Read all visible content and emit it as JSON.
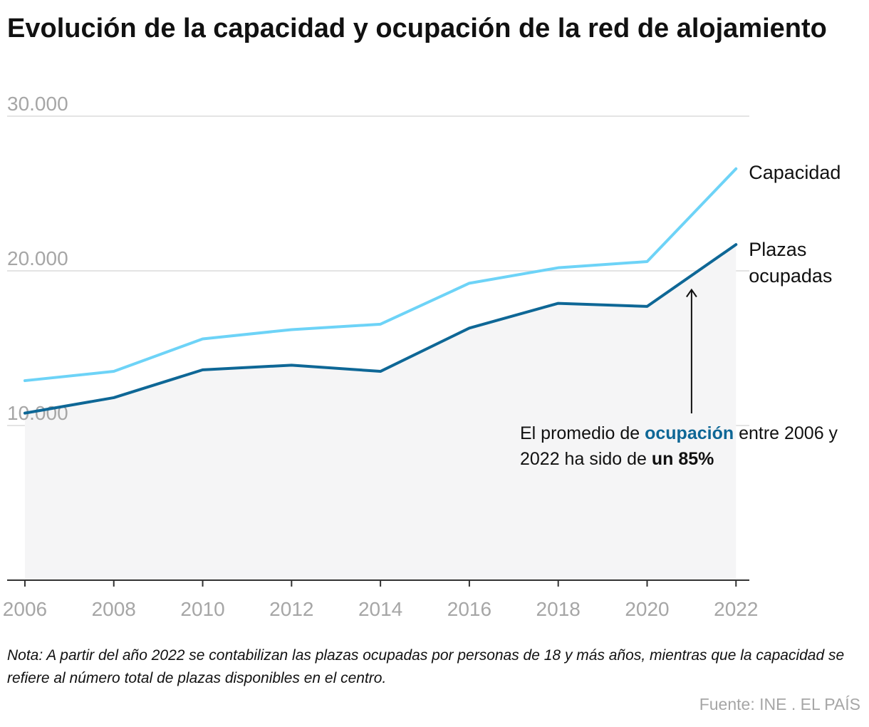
{
  "title": "Evolución de la capacidad y ocupación de la red de alojamiento",
  "chart_data": {
    "type": "line",
    "x": [
      2006,
      2008,
      2010,
      2012,
      2014,
      2016,
      2018,
      2020,
      2022
    ],
    "x_tick_labels": [
      "2006",
      "2008",
      "2010",
      "2012",
      "2014",
      "2016",
      "2018",
      "2020",
      "2022"
    ],
    "xlim": [
      2005.6,
      2022.3
    ],
    "ylim": [
      0,
      30000
    ],
    "y_ticks": [
      10000,
      20000,
      30000
    ],
    "y_tick_labels": [
      "10.000",
      "20.000",
      "30.000"
    ],
    "grid": true,
    "series": [
      {
        "name": "Capacidad",
        "color": "#6dd3f7",
        "values": [
          12900,
          13500,
          15600,
          16200,
          16550,
          19200,
          20200,
          20600,
          26600
        ]
      },
      {
        "name": "Plazas ocupadas",
        "color": "#0e6796",
        "area_fill": "#f5f5f6",
        "values": [
          10800,
          11800,
          13600,
          13900,
          13500,
          16300,
          17900,
          17700,
          21700
        ]
      }
    ],
    "series_labels": {
      "capacidad": "Capacidad",
      "ocupadas_line1": "Plazas",
      "ocupadas_line2": "ocupadas"
    }
  },
  "annotation": {
    "part1": "El promedio de ",
    "highlight": "ocupación",
    "part2": " entre 2006 y 2022 ha sido de ",
    "bold": "un 85%",
    "arrow_color": "#111111"
  },
  "note": "Nota: A partir del año 2022 se contabilizan las plazas ocupadas por personas de 18 y más años, mientras que la capacidad se refiere al número total de plazas disponibles en el centro.",
  "source": "Fuente: INE . EL PAÍS"
}
